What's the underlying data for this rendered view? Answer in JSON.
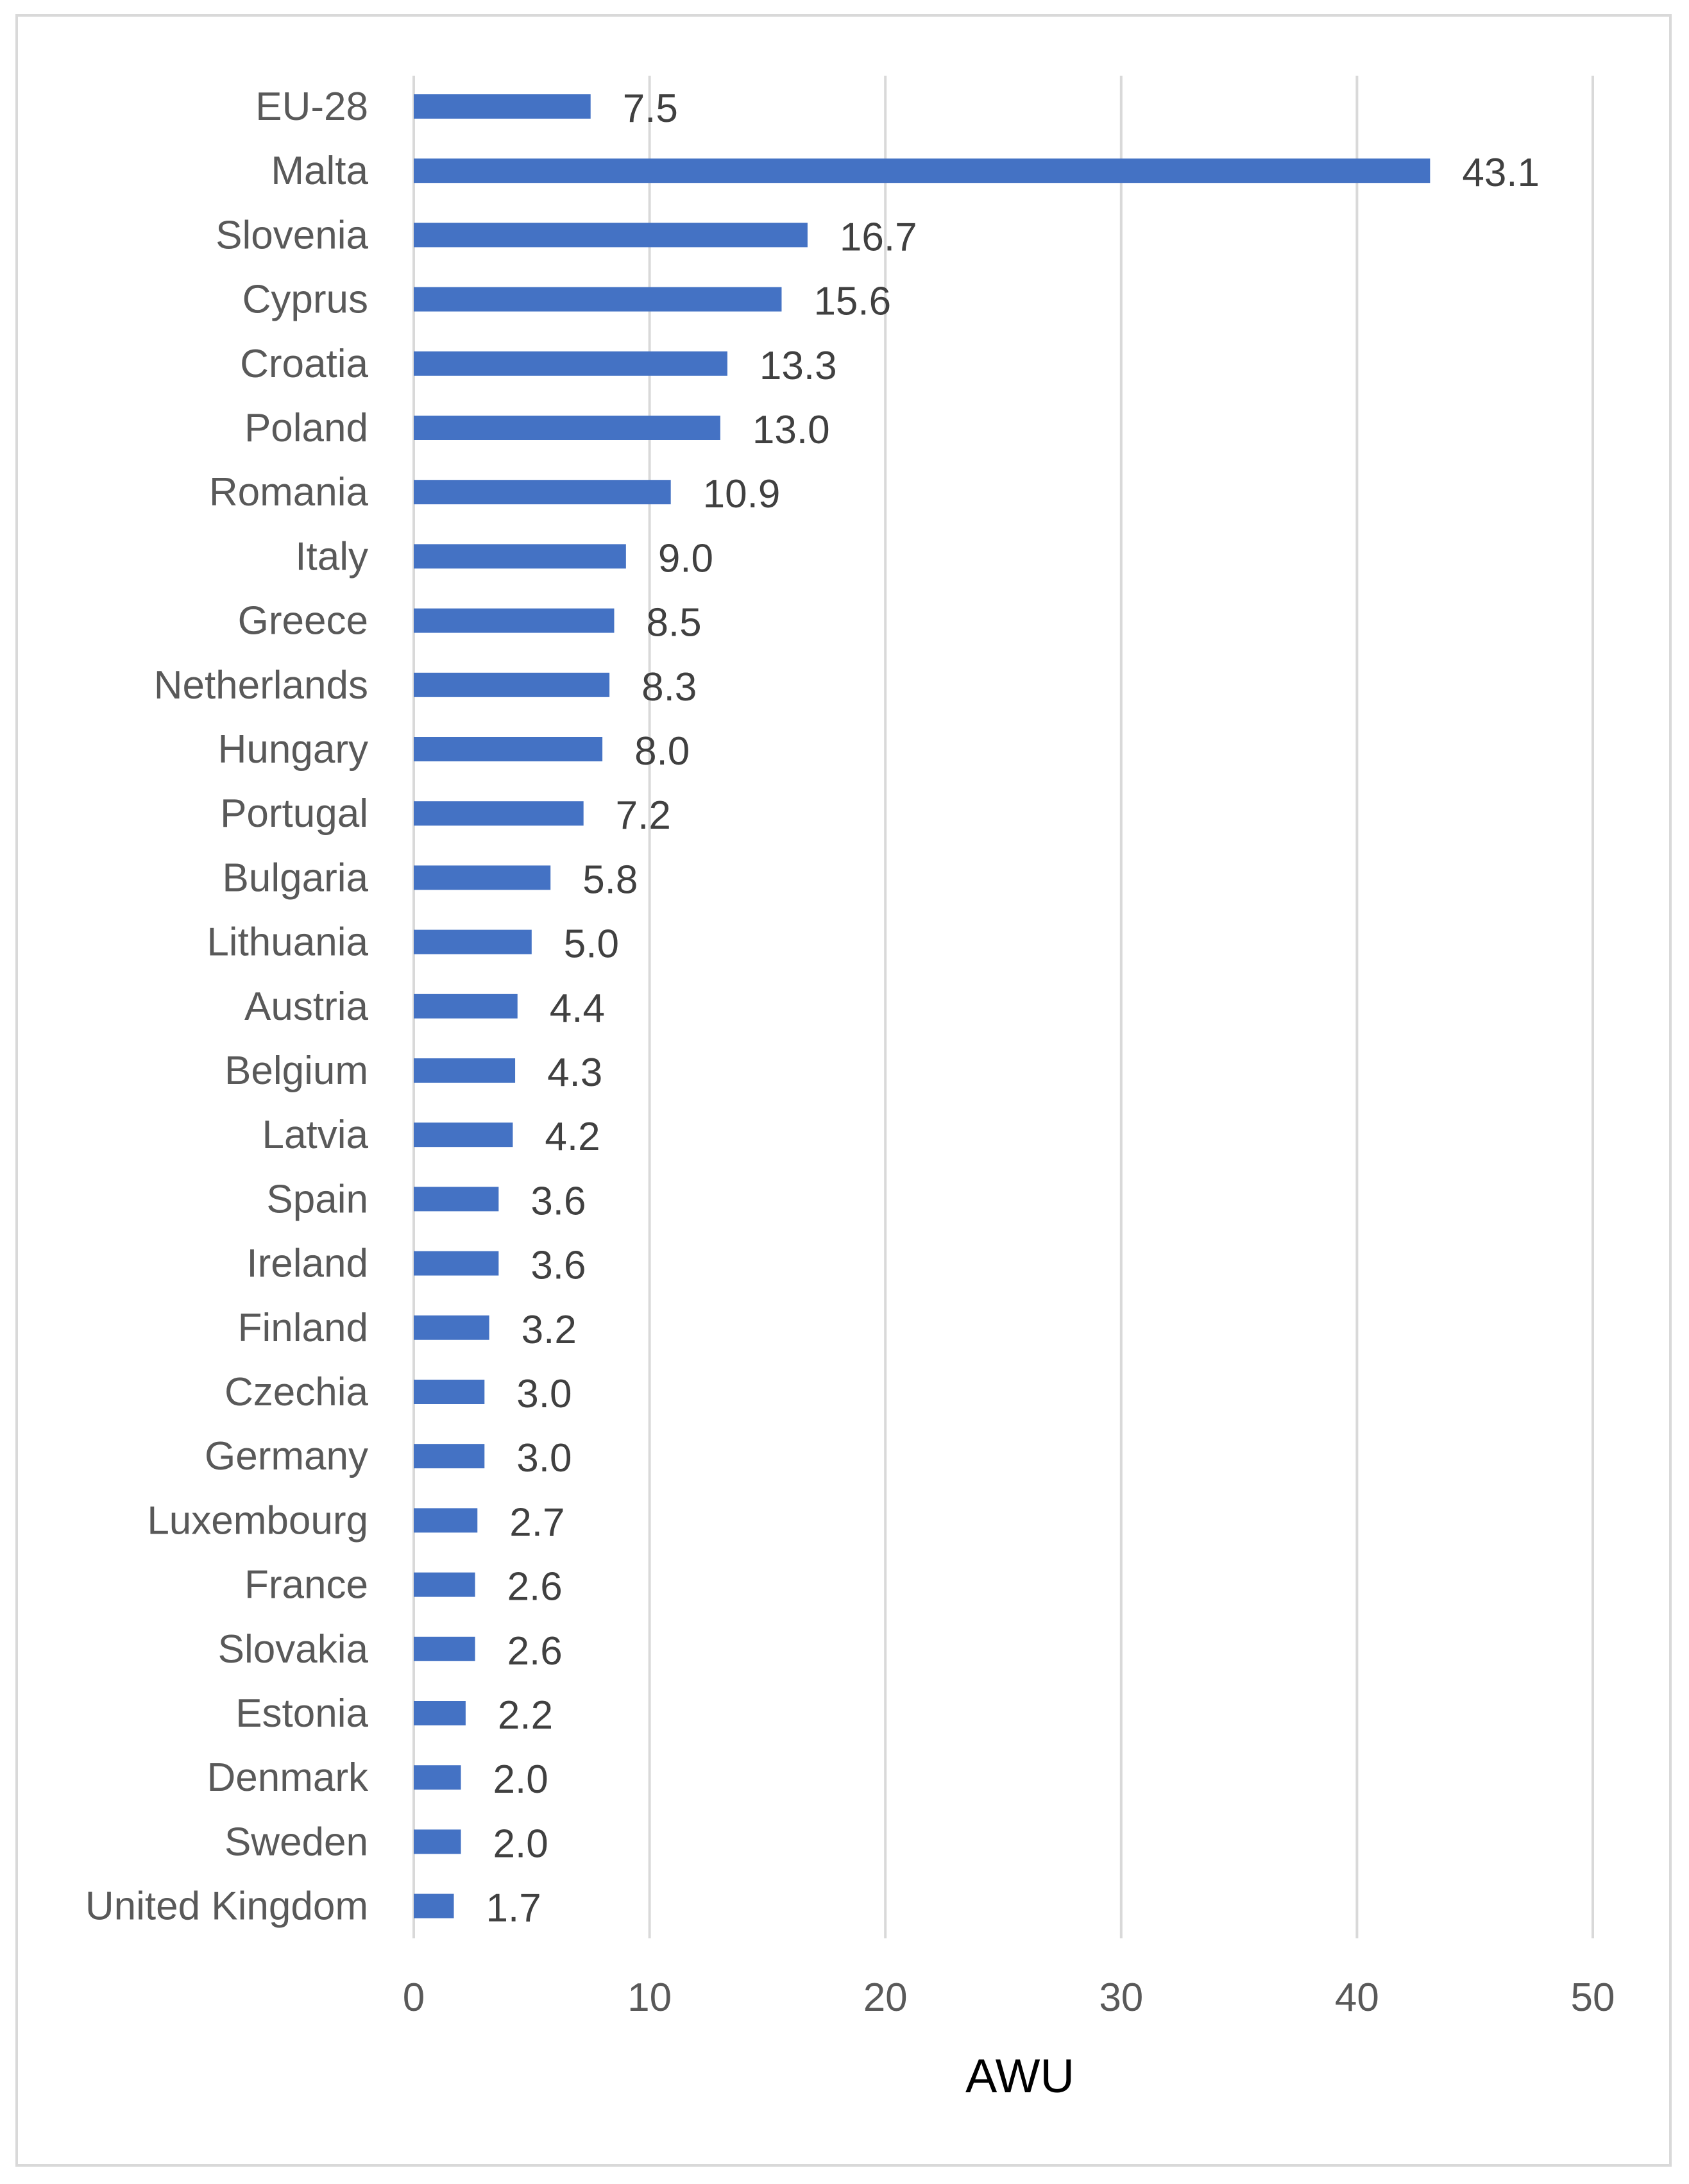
{
  "chart_data": {
    "type": "bar",
    "orientation": "horizontal",
    "categories": [
      "EU-28",
      "Malta",
      "Slovenia",
      "Cyprus",
      "Croatia",
      "Poland",
      "Romania",
      "Italy",
      "Greece",
      "Netherlands",
      "Hungary",
      "Portugal",
      "Bulgaria",
      "Lithuania",
      "Austria",
      "Belgium",
      "Latvia",
      "Spain",
      "Ireland",
      "Finland",
      "Czechia",
      "Germany",
      "Luxembourg",
      "France",
      "Slovakia",
      "Estonia",
      "Denmark",
      "Sweden",
      "United Kingdom"
    ],
    "values": [
      7.5,
      43.1,
      16.7,
      15.6,
      13.3,
      13.0,
      10.9,
      9.0,
      8.5,
      8.3,
      8.0,
      7.2,
      5.8,
      5.0,
      4.4,
      4.3,
      4.2,
      3.6,
      3.6,
      3.2,
      3.0,
      3.0,
      2.7,
      2.6,
      2.6,
      2.2,
      2.0,
      2.0,
      1.7
    ],
    "value_labels": [
      "7.5",
      "43.1",
      "16.7",
      "15.6",
      "13.3",
      "13.0",
      "10.9",
      "9.0",
      "8.5",
      "8.3",
      "8.0",
      "7.2",
      "5.8",
      "5.0",
      "4.4",
      "4.3",
      "4.2",
      "3.6",
      "3.6",
      "3.2",
      "3.0",
      "3.0",
      "2.7",
      "2.6",
      "2.6",
      "2.2",
      "2.0",
      "2.0",
      "1.7"
    ],
    "xlabel": "AWU",
    "xlim": [
      0,
      50
    ],
    "xticks": [
      "0",
      "10",
      "20",
      "30",
      "40",
      "50"
    ],
    "grid": "vertical",
    "legend": "none",
    "bar_color": "#4472c4"
  }
}
